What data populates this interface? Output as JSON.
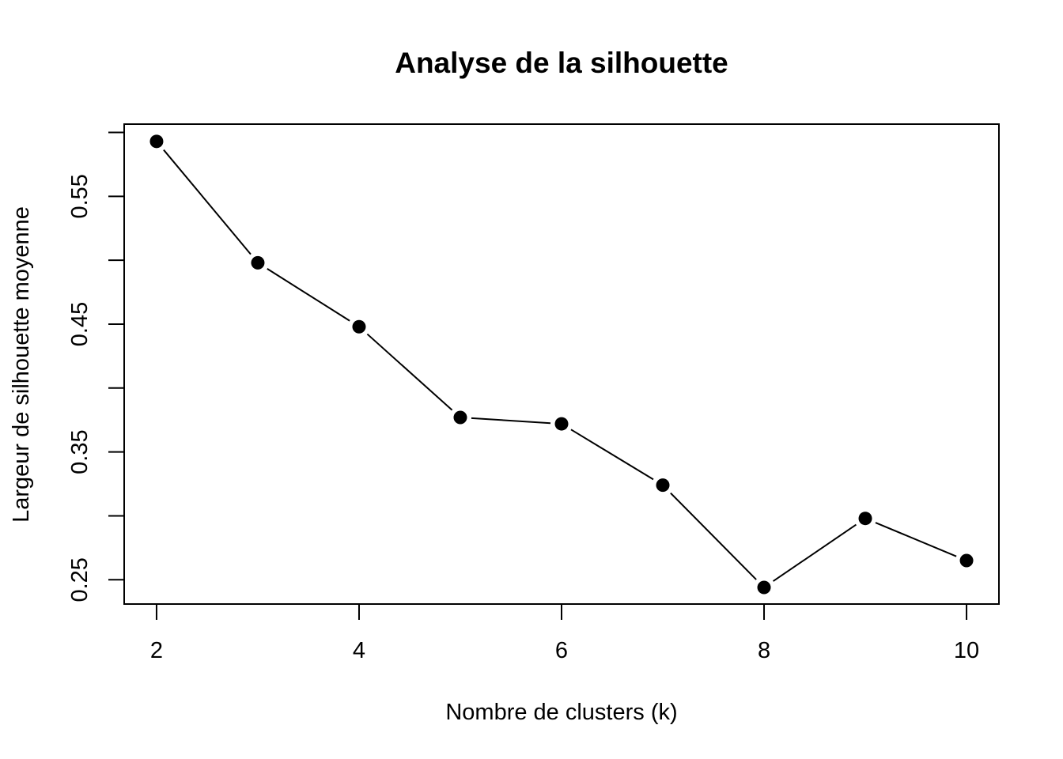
{
  "chart_data": {
    "type": "line",
    "title": "Analyse de la silhouette",
    "xlabel": "Nombre de clusters (k)",
    "ylabel": "Largeur de silhouette moyenne",
    "x": [
      2,
      3,
      4,
      5,
      6,
      7,
      8,
      9,
      10
    ],
    "series": [
      {
        "values": [
          0.593,
          0.498,
          0.448,
          0.377,
          0.372,
          0.324,
          0.244,
          0.298,
          0.265
        ]
      }
    ],
    "xlim": [
      1.68,
      10.32
    ],
    "ylim": [
      0.231,
      0.6065
    ],
    "xticks": [
      2,
      4,
      6,
      8,
      10
    ],
    "xtick_labels": [
      "2",
      "4",
      "6",
      "8",
      "10"
    ],
    "yticks": [
      0.25,
      0.3,
      0.35,
      0.4,
      0.45,
      0.5,
      0.55,
      0.6
    ],
    "ytick_labels": [
      "0.25",
      "",
      "0.35",
      "",
      "0.45",
      "",
      "0.55",
      ""
    ],
    "markers": "filled-circle",
    "grid": false,
    "colors": {
      "line": "#000000",
      "marker": "#000000"
    }
  }
}
